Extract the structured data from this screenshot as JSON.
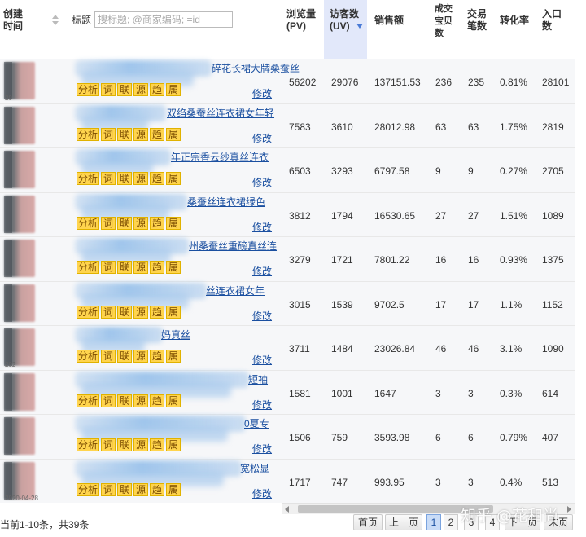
{
  "header": {
    "created": "创建时间",
    "created_l1": "创建",
    "created_l2": "时间",
    "title": "标题",
    "search_placeholder": "搜标题; @商家编码; =id",
    "pv_l1": "浏览量",
    "pv_l2": "(PV)",
    "uv_l1": "访客数",
    "uv_l2": "(UV)",
    "sales": "销售额",
    "deal_l1": "成交",
    "deal_l2": "宝贝",
    "deal_l3": "数",
    "txn_l1": "交易",
    "txn_l2": "笔数",
    "conv": "转化率",
    "entry_l1": "入口",
    "entry_l2": "数"
  },
  "tags": [
    "分析",
    "词",
    "联",
    "源",
    "趋",
    "属"
  ],
  "edit_label": "修改",
  "rows": [
    {
      "title_fragment": "碎花长裙大牌桑蚕丝",
      "pv": "56202",
      "uv": "29076",
      "sales": "137151.53",
      "deal": "236",
      "txn": "235",
      "conv": "0.81%",
      "entry": "28101",
      "date_fragment": "20"
    },
    {
      "title_fragment": "双绉桑蚕丝连衣裙女年轻",
      "pv": "7583",
      "uv": "3610",
      "sales": "28012.98",
      "deal": "63",
      "txn": "63",
      "conv": "1.75%",
      "entry": "2819",
      "date_fragment": ""
    },
    {
      "title_fragment": "年正宗香云纱真丝连衣",
      "pv": "6503",
      "uv": "3293",
      "sales": "6797.58",
      "deal": "9",
      "txn": "9",
      "conv": "0.27%",
      "entry": "2705",
      "date_fragment": ""
    },
    {
      "title_fragment": "桑蚕丝连衣裙绿色",
      "pv": "3812",
      "uv": "1794",
      "sales": "16530.65",
      "deal": "27",
      "txn": "27",
      "conv": "1.51%",
      "entry": "1089",
      "date_fragment": ""
    },
    {
      "title_fragment": "州桑蚕丝重磅真丝连",
      "pv": "3279",
      "uv": "1721",
      "sales": "7801.22",
      "deal": "16",
      "txn": "16",
      "conv": "0.93%",
      "entry": "1375",
      "date_fragment": ""
    },
    {
      "title_fragment": "丝连衣裙女年",
      "pv": "3015",
      "uv": "1539",
      "sales": "9702.5",
      "deal": "17",
      "txn": "17",
      "conv": "1.1%",
      "entry": "1152",
      "date_fragment": ""
    },
    {
      "title_fragment": "妈真丝",
      "pv": "3711",
      "uv": "1484",
      "sales": "23026.84",
      "deal": "46",
      "txn": "46",
      "conv": "3.1%",
      "entry": "1090",
      "date_fragment": "202"
    },
    {
      "title_fragment": "短袖",
      "pv": "1581",
      "uv": "1001",
      "sales": "1647",
      "deal": "3",
      "txn": "3",
      "conv": "0.3%",
      "entry": "614",
      "date_fragment": ""
    },
    {
      "title_fragment": "0夏专",
      "pv": "1506",
      "uv": "759",
      "sales": "3593.98",
      "deal": "6",
      "txn": "6",
      "conv": "0.79%",
      "entry": "407",
      "date_fragment": ""
    },
    {
      "title_fragment": "宽松显",
      "pv": "1717",
      "uv": "747",
      "sales": "993.95",
      "deal": "3",
      "txn": "3",
      "conv": "0.4%",
      "entry": "513",
      "date_fragment": "2020-04-28"
    }
  ],
  "footer": {
    "summary": "当前1-10条，共39条",
    "first": "首页",
    "prev": "上一页",
    "pages": [
      "1",
      "2",
      "3",
      "4"
    ],
    "next": "下一页",
    "last": "末页",
    "watermark": "知乎 @花和尚"
  },
  "colors": {
    "uv_column": "#e2e8fa",
    "tag_bg": "#ffd44d",
    "link": "#1a4fa0",
    "active_page": "#c9dcf7"
  }
}
